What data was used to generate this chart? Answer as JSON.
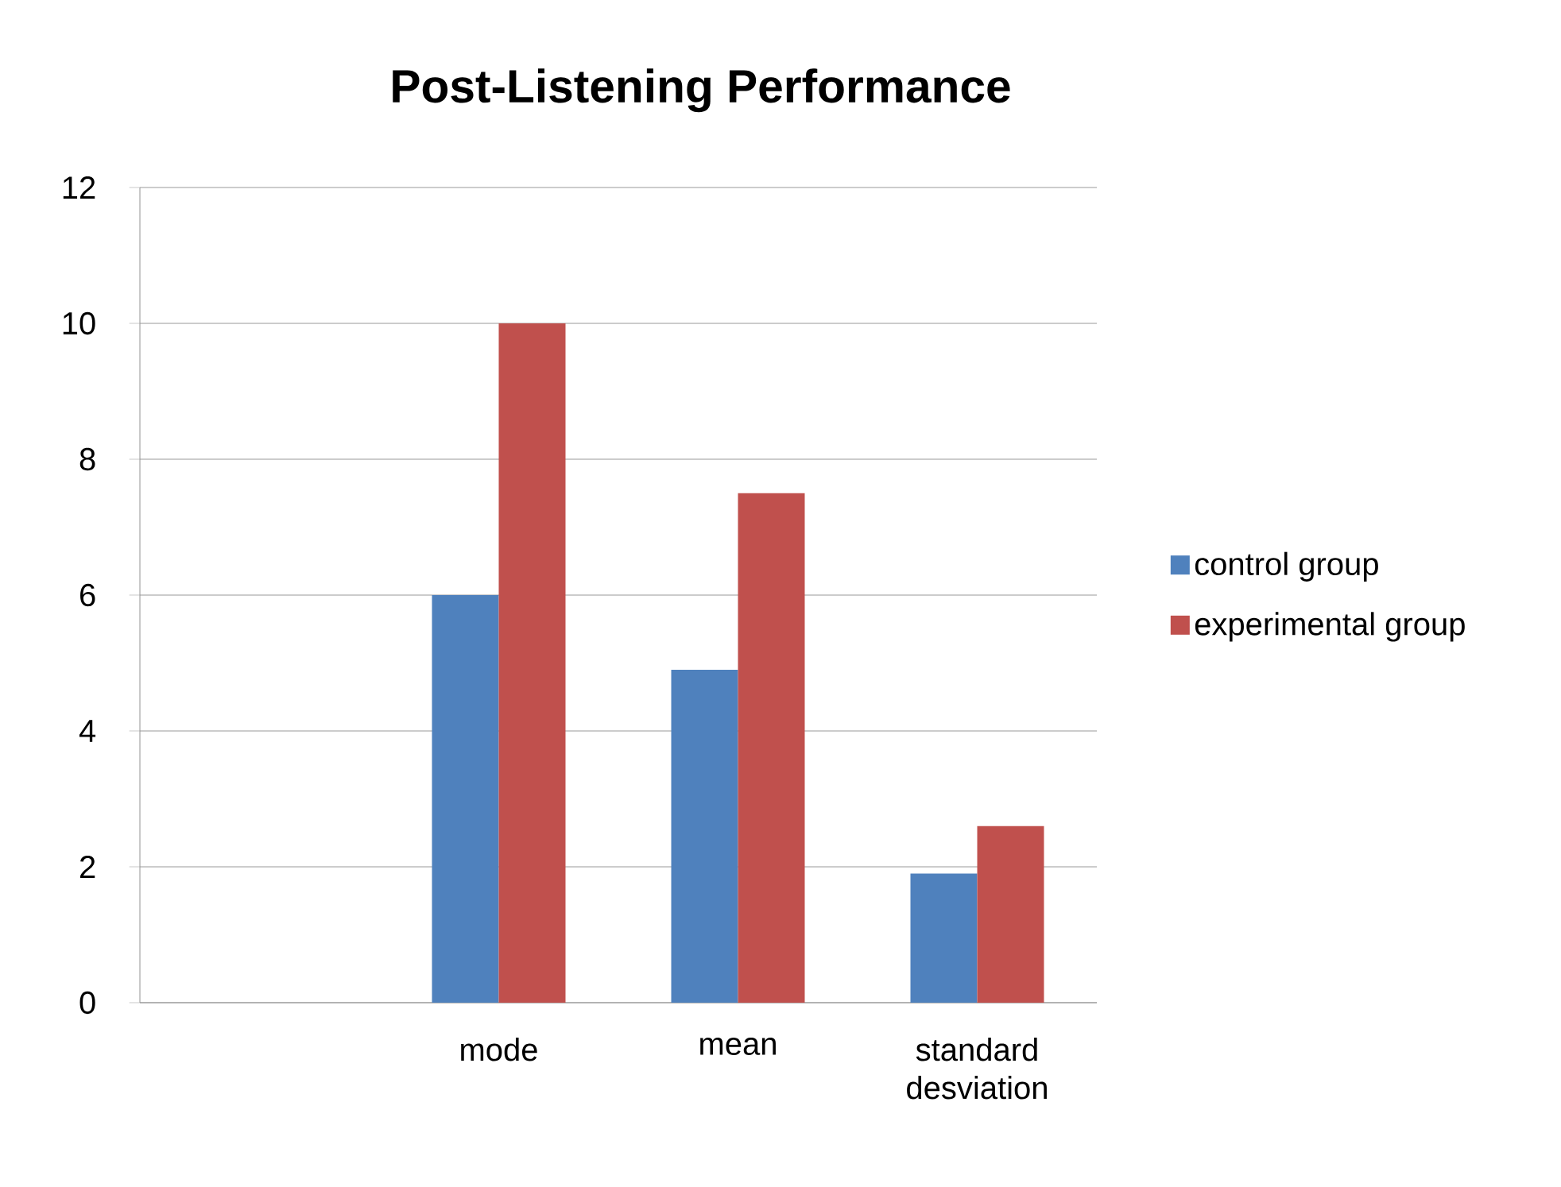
{
  "chart_data": {
    "type": "bar",
    "title": "Post-Listening Performance",
    "categories": [
      null,
      "mode",
      "mean",
      "standard desviation"
    ],
    "series": [
      {
        "name": "control group",
        "color": "#4f81bd",
        "values": [
          null,
          6,
          4.9,
          1.9
        ]
      },
      {
        "name": "experimental group",
        "color": "#c0504d",
        "values": [
          null,
          10,
          7.5,
          2.6
        ]
      }
    ],
    "ylim": [
      0,
      12
    ],
    "yticks": [
      0,
      2,
      4,
      6,
      8,
      10,
      12
    ],
    "grid": "y",
    "legend": "right"
  }
}
